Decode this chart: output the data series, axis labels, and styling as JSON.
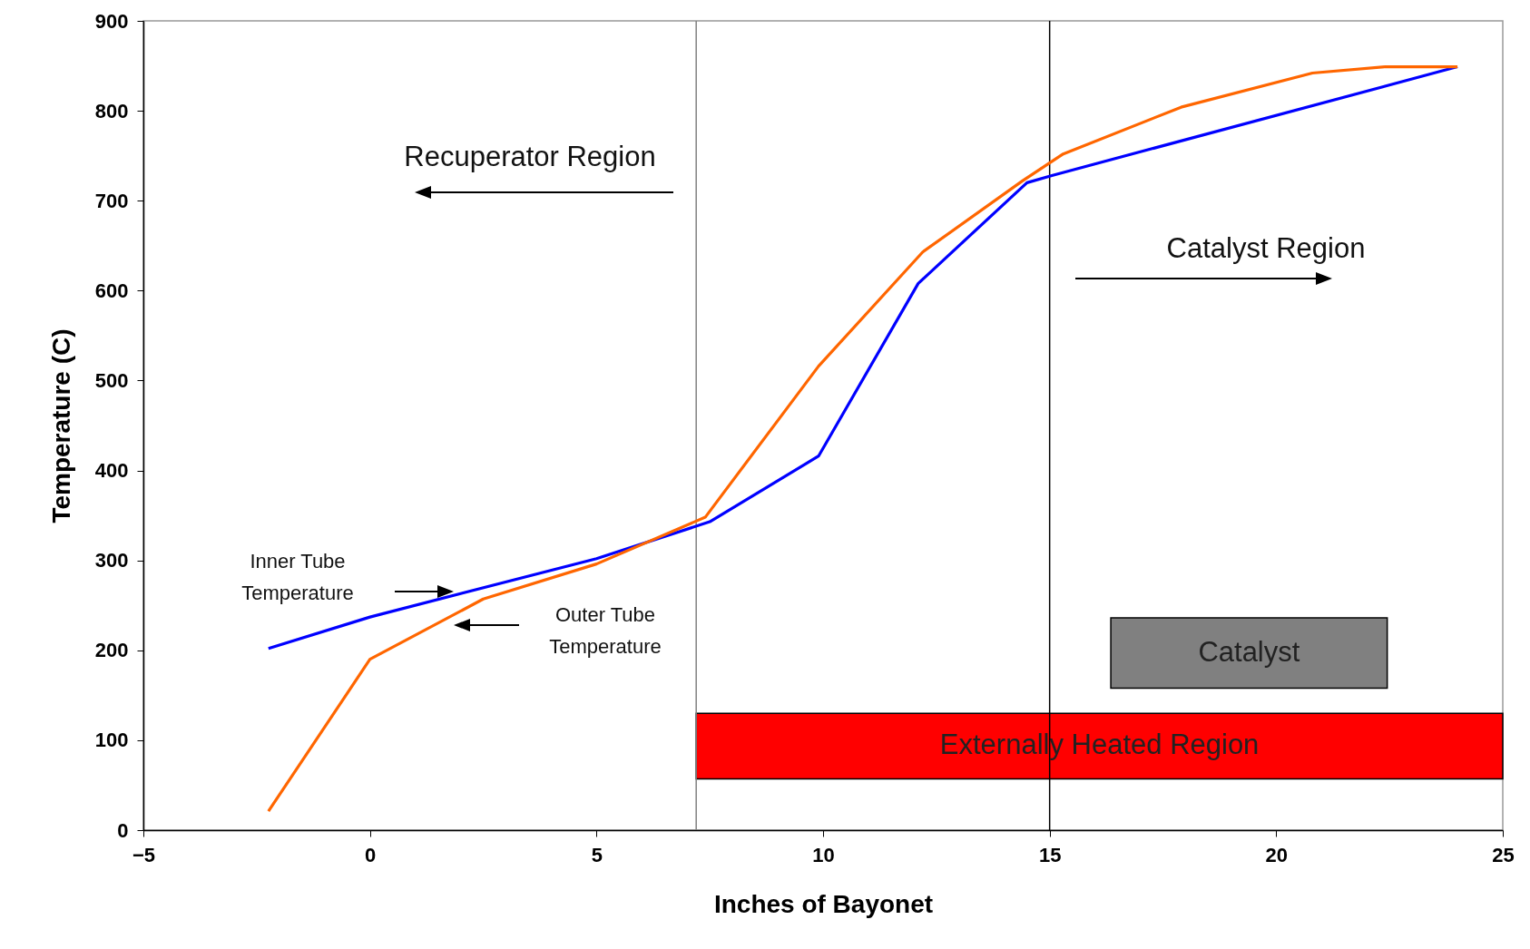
{
  "chart_data": {
    "type": "line",
    "xlabel": "Inches of Bayonet",
    "ylabel": "Temperature (C)",
    "xlim": [
      -5,
      25
    ],
    "xticks": [
      -5,
      0,
      5,
      10,
      15,
      20,
      25
    ],
    "ylim": [
      0,
      900
    ],
    "yticks": [
      0,
      100,
      200,
      300,
      400,
      500,
      600,
      700,
      800,
      900
    ],
    "grid": false,
    "series": [
      {
        "color": "#0000ff",
        "x": [
          -2.24,
          0,
          5,
          7.5,
          9.9,
          12.1,
          14.5,
          15.05,
          24
        ],
        "values": [
          202,
          237,
          302,
          343,
          416,
          608,
          720,
          728,
          849
        ]
      },
      {
        "color": "#ff6600",
        "x": [
          -2.24,
          0,
          2.5,
          5,
          7.4,
          9.9,
          12.2,
          14.4,
          15.3,
          17.9,
          20.8,
          22.4,
          24
        ],
        "values": [
          21,
          190,
          257,
          296,
          348,
          516,
          643,
          722,
          752,
          804,
          842,
          849,
          849
        ]
      }
    ],
    "ref_lines": [
      {
        "axis": "x",
        "value": 7.2,
        "color": "#808080"
      },
      {
        "axis": "x",
        "value": 15,
        "color": "#000000"
      }
    ],
    "bands": [
      {
        "axis": "x",
        "from": 7.2,
        "to": 25,
        "label": "Externally Heated Region",
        "color": "#ff0000"
      },
      {
        "axis": "x",
        "from": 16.35,
        "to": 22.45,
        "label": "Catalyst",
        "color": "#808080"
      }
    ],
    "annotations": [
      "Recuperator Region",
      "Catalyst Region",
      "Inner Tube Temperature",
      "Outer Tube Temperature"
    ]
  }
}
